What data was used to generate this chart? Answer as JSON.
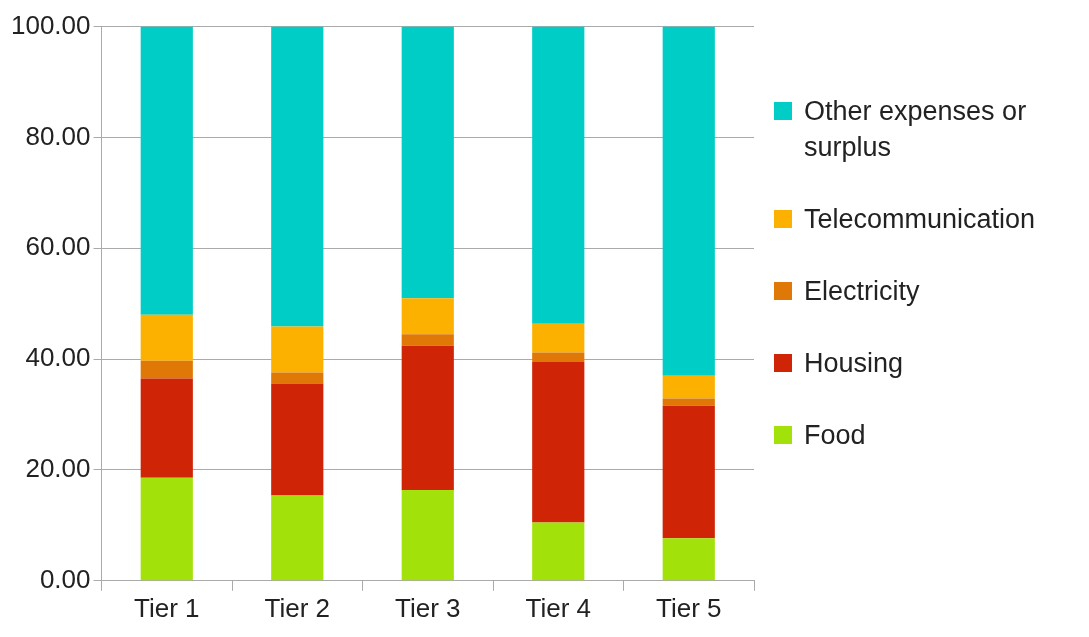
{
  "chart_data": {
    "type": "bar",
    "stacked": true,
    "categories": [
      "Tier 1",
      "Tier 2",
      "Tier 3",
      "Tier 4",
      "Tier 5"
    ],
    "series": [
      {
        "name": "Food",
        "color": "#a2e20a",
        "values": [
          18.6,
          15.4,
          16.4,
          10.5,
          7.7
        ]
      },
      {
        "name": "Housing",
        "color": "#cf2506",
        "values": [
          17.9,
          20.2,
          26.0,
          29.0,
          23.9
        ]
      },
      {
        "name": "Electricity",
        "color": "#e07808",
        "values": [
          3.2,
          2.0,
          2.1,
          1.7,
          1.3
        ]
      },
      {
        "name": "Telecommunication",
        "color": "#fcb100",
        "values": [
          8.3,
          8.3,
          6.5,
          5.2,
          4.1
        ]
      },
      {
        "name": "Other expenses or surplus",
        "color": "#00cdc6",
        "values": [
          52.0,
          54.1,
          49.0,
          53.6,
          63.0
        ]
      }
    ],
    "ylim": [
      0,
      100
    ],
    "yticks": [
      {
        "value": 0,
        "label": "0.00"
      },
      {
        "value": 20,
        "label": "20.00"
      },
      {
        "value": 40,
        "label": "40.00"
      },
      {
        "value": 60,
        "label": "60.00"
      },
      {
        "value": 80,
        "label": "80.00"
      },
      {
        "value": 100,
        "label": "100.00"
      }
    ],
    "grid": "y",
    "legend": "right"
  }
}
